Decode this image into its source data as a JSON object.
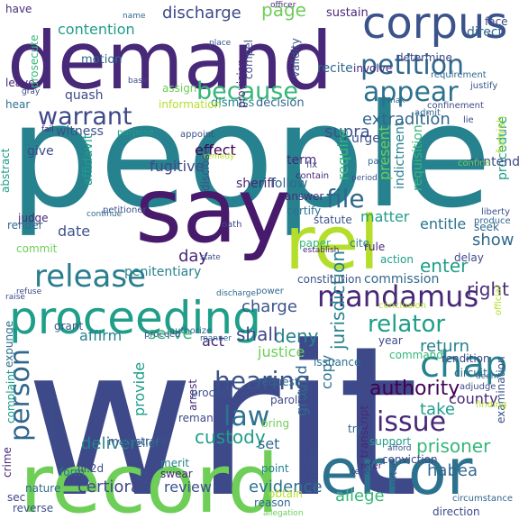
{
  "colors": {
    "background": "#ffffff",
    "palette": [
      "#440154",
      "#482878",
      "#3e4989",
      "#31688e",
      "#26828e",
      "#1f9e89",
      "#35b779",
      "#6ece58",
      "#b5de2b"
    ]
  },
  "words": [
    {
      "text": "people",
      "color": "#26828e"
    },
    {
      "text": "writ",
      "color": "#3e4989"
    },
    {
      "text": "demand",
      "color": "#482878"
    },
    {
      "text": "say",
      "color": "#481a6c"
    },
    {
      "text": "record",
      "color": "#6ece58"
    },
    {
      "text": "error",
      "color": "#2c728e"
    },
    {
      "text": "rel",
      "color": "#b5de2b"
    },
    {
      "text": "corpus",
      "color": "#3b528b"
    },
    {
      "text": "proceeding",
      "color": "#1f9e89"
    },
    {
      "text": "mandamus",
      "color": "#482878"
    },
    {
      "text": "release",
      "color": "#287d8e"
    },
    {
      "text": "petition",
      "color": "#31688e"
    },
    {
      "text": "appear",
      "color": "#2c728e"
    },
    {
      "text": "chap",
      "color": "#26828e"
    },
    {
      "text": "because",
      "color": "#35b779"
    },
    {
      "text": "warrant",
      "color": "#3e4989"
    },
    {
      "text": "person",
      "color": "#31688e"
    },
    {
      "text": "hearing",
      "color": "#3b528b"
    },
    {
      "text": "law",
      "color": "#2c728e"
    },
    {
      "text": "relator",
      "color": "#1f9e89"
    },
    {
      "text": "issue",
      "color": "#482878"
    },
    {
      "text": "authority",
      "color": "#440154"
    },
    {
      "text": "file",
      "color": "#31688e"
    },
    {
      "text": "discharge",
      "color": "#3e4989"
    },
    {
      "text": "contention",
      "color": "#1f9e89"
    },
    {
      "text": "page",
      "color": "#6ece58"
    },
    {
      "text": "extradition",
      "color": "#31688e"
    },
    {
      "text": "supra",
      "color": "#3b528b"
    },
    {
      "text": "deny",
      "color": "#26828e"
    },
    {
      "text": "enter",
      "color": "#1f9e89"
    },
    {
      "text": "right",
      "color": "#472d7b"
    },
    {
      "text": "prisoner",
      "color": "#35b779"
    },
    {
      "text": "custody",
      "color": "#1f9e89"
    },
    {
      "text": "deliver",
      "color": "#26828e"
    },
    {
      "text": "certiorari",
      "color": "#3e4989"
    },
    {
      "text": "evidence",
      "color": "#2c728e"
    },
    {
      "text": "habea",
      "color": "#31688e"
    },
    {
      "text": "allege",
      "color": "#35b779"
    },
    {
      "text": "review",
      "color": "#3b528b"
    },
    {
      "text": "take",
      "color": "#1f9e89"
    },
    {
      "text": "county",
      "color": "#482878"
    },
    {
      "text": "return",
      "color": "#26828e"
    },
    {
      "text": "jurisdiction",
      "color": "#26828e"
    },
    {
      "text": "charge",
      "color": "#3b528b"
    },
    {
      "text": "show",
      "color": "#31688e"
    },
    {
      "text": "matter",
      "color": "#1f9e89"
    },
    {
      "text": "entitle",
      "color": "#2c728e"
    },
    {
      "text": "shall",
      "color": "#3e4989"
    },
    {
      "text": "justice",
      "color": "#6ece58"
    },
    {
      "text": "day",
      "color": "#482878"
    },
    {
      "text": "date",
      "color": "#3b528b"
    },
    {
      "text": "serve",
      "color": "#35b779"
    },
    {
      "text": "affirm",
      "color": "#26828e"
    },
    {
      "text": "act",
      "color": "#482878"
    },
    {
      "text": "provide",
      "color": "#1f9e89"
    },
    {
      "text": "set",
      "color": "#31688e"
    },
    {
      "text": "fugitive",
      "color": "#3e4989"
    },
    {
      "text": "effect",
      "color": "#440154"
    },
    {
      "text": "require",
      "color": "#35b779"
    },
    {
      "text": "present",
      "color": "#6ece58"
    },
    {
      "text": "ground",
      "color": "#31688e"
    },
    {
      "text": "copy",
      "color": "#2c728e"
    },
    {
      "text": "sheriff",
      "color": "#482878"
    },
    {
      "text": "follow",
      "color": "#31688e"
    },
    {
      "text": "urge",
      "color": "#3b528b"
    },
    {
      "text": "indictment",
      "color": "#26828e"
    },
    {
      "text": "requisition",
      "color": "#35b779"
    },
    {
      "text": "procedure",
      "color": "#1f9e89"
    },
    {
      "text": "contend",
      "color": "#3e4989"
    },
    {
      "text": "term",
      "color": "#482878"
    },
    {
      "text": "decision",
      "color": "#31688e"
    },
    {
      "text": "dismiss",
      "color": "#26828e"
    },
    {
      "text": "information",
      "color": "#b5de2b"
    },
    {
      "text": "assign",
      "color": "#6ece58"
    },
    {
      "text": "motion",
      "color": "#31688e"
    },
    {
      "text": "witness",
      "color": "#3b528b"
    },
    {
      "text": "give",
      "color": "#3e4989"
    },
    {
      "text": "affidavit",
      "color": "#1f9e89"
    },
    {
      "text": "quash",
      "color": "#3e4989"
    },
    {
      "text": "hear",
      "color": "#2c728e"
    },
    {
      "text": "leave",
      "color": "#482878"
    },
    {
      "text": "prosecute",
      "color": "#35b779"
    },
    {
      "text": "have",
      "color": "#472d7b"
    },
    {
      "text": "recite",
      "color": "#31688e"
    },
    {
      "text": "involve",
      "color": "#482878"
    },
    {
      "text": "determine",
      "color": "#3e4989"
    },
    {
      "text": "direct",
      "color": "#31688e"
    },
    {
      "text": "sustain",
      "color": "#482878"
    },
    {
      "text": "face",
      "color": "#3e4989"
    },
    {
      "text": "compel",
      "color": "#3e4989"
    },
    {
      "text": "validity",
      "color": "#3b528b"
    },
    {
      "text": "provision",
      "color": "#482878"
    },
    {
      "text": "answer",
      "color": "#472d7b"
    },
    {
      "text": "certify",
      "color": "#2c728e"
    },
    {
      "text": "statute",
      "color": "#3b528b"
    },
    {
      "text": "seek",
      "color": "#31688e"
    },
    {
      "text": "paper",
      "color": "#35b779"
    },
    {
      "text": "cite",
      "color": "#26828e"
    },
    {
      "text": "rule",
      "color": "#482878"
    },
    {
      "text": "action",
      "color": "#1f9e89"
    },
    {
      "text": "delay",
      "color": "#3e4989"
    },
    {
      "text": "commission",
      "color": "#31688e"
    },
    {
      "text": "constitution",
      "color": "#3b528b"
    },
    {
      "text": "penitentiary",
      "color": "#26828e"
    },
    {
      "text": "commit",
      "color": "#6ece58"
    },
    {
      "text": "render",
      "color": "#31688e"
    },
    {
      "text": "judge",
      "color": "#482878"
    },
    {
      "text": "abstract",
      "color": "#1f9e89"
    },
    {
      "text": "petitioner",
      "color": "#3b528b"
    },
    {
      "text": "oath",
      "color": "#3e4989"
    },
    {
      "text": "grant",
      "color": "#3b528b"
    },
    {
      "text": "expunge",
      "color": "#2c728e"
    },
    {
      "text": "complaint",
      "color": "#1f9e89"
    },
    {
      "text": "crime",
      "color": "#482878"
    },
    {
      "text": "sec",
      "color": "#3e4989"
    },
    {
      "text": "nature",
      "color": "#31688e"
    },
    {
      "text": "reverse",
      "color": "#3b528b"
    },
    {
      "text": "form",
      "color": "#2c728e"
    },
    {
      "text": "ill.2d",
      "color": "#3e4989"
    },
    {
      "text": "swear",
      "color": "#482878"
    },
    {
      "text": "merit",
      "color": "#26828e"
    },
    {
      "text": "magistrate",
      "color": "#3b528b"
    },
    {
      "text": "relief",
      "color": "#31688e"
    },
    {
      "text": "bring",
      "color": "#6ece58"
    },
    {
      "text": "arrest",
      "color": "#482878"
    },
    {
      "text": "remand",
      "color": "#3e4989"
    },
    {
      "text": "process",
      "color": "#3b528b"
    },
    {
      "text": "request",
      "color": "#31688e"
    },
    {
      "text": "issuance",
      "color": "#2c728e"
    },
    {
      "text": "parole",
      "color": "#3e4989"
    },
    {
      "text": "point",
      "color": "#26828e"
    },
    {
      "text": "obtain",
      "color": "#b5de2b"
    },
    {
      "text": "reason",
      "color": "#31688e"
    },
    {
      "text": "consider",
      "color": "#3b528b"
    },
    {
      "text": "transcript",
      "color": "#482878"
    },
    {
      "text": "year",
      "color": "#3e4989"
    },
    {
      "text": "command",
      "color": "#35b779"
    },
    {
      "text": "rendition",
      "color": "#3e4989"
    },
    {
      "text": "circuit",
      "color": "#31688e"
    },
    {
      "text": "support",
      "color": "#1f9e89"
    },
    {
      "text": "conviction",
      "color": "#3e4989"
    },
    {
      "text": "try",
      "color": "#31688e"
    },
    {
      "text": "examination",
      "color": "#3b528b"
    },
    {
      "text": "adjudge",
      "color": "#3e4989"
    },
    {
      "text": "finding",
      "color": "#b5de2b"
    },
    {
      "text": "circumstance",
      "color": "#31688e"
    },
    {
      "text": "direction",
      "color": "#3e4989"
    },
    {
      "text": "virtue",
      "color": "#3b528b"
    },
    {
      "text": "refer",
      "color": "#482878"
    },
    {
      "text": "officer",
      "color": "#482878"
    },
    {
      "text": "name",
      "color": "#31688e"
    },
    {
      "text": "place",
      "color": "#3b528b"
    },
    {
      "text": "base",
      "color": "#3e4989"
    },
    {
      "text": "requirement",
      "color": "#31688e"
    },
    {
      "text": "justify",
      "color": "#3b528b"
    },
    {
      "text": "confinement",
      "color": "#3e4989"
    },
    {
      "text": "admit",
      "color": "#31688e"
    },
    {
      "text": "purpose",
      "color": "#1f9e89"
    },
    {
      "text": "appoint",
      "color": "#3b528b"
    },
    {
      "text": "remedy",
      "color": "#b5de2b"
    },
    {
      "text": "contain",
      "color": "#482878"
    },
    {
      "text": "fix",
      "color": "#3e4989"
    },
    {
      "text": "par",
      "color": "#31688e"
    },
    {
      "text": "period",
      "color": "#3b528b"
    },
    {
      "text": "confine",
      "color": "#6ece58"
    },
    {
      "text": "furnish",
      "color": "#b5de2b"
    },
    {
      "text": "liberty",
      "color": "#3b528b"
    },
    {
      "text": "produce",
      "color": "#31688e"
    },
    {
      "text": "establish",
      "color": "#482878"
    },
    {
      "text": "refuse",
      "color": "#3e4989"
    },
    {
      "text": "continue",
      "color": "#31688e"
    },
    {
      "text": "disclose",
      "color": "#3b528b"
    },
    {
      "text": "power",
      "color": "#31688e"
    },
    {
      "text": "conclusion",
      "color": "#b5de2b"
    },
    {
      "text": "authorize",
      "color": "#31688e"
    },
    {
      "text": "proceed",
      "color": "#3b528b"
    },
    {
      "text": "raise",
      "color": "#3e4989"
    },
    {
      "text": "official",
      "color": "#b5de2b"
    },
    {
      "text": "manner",
      "color": "#31688e"
    },
    {
      "text": "teller",
      "color": "#3e4989"
    },
    {
      "text": "deem",
      "color": "#31688e"
    },
    {
      "text": "afford",
      "color": "#3b528b"
    },
    {
      "text": "allegation",
      "color": "#6ece58"
    },
    {
      "text": "lie",
      "color": "#3e4989"
    },
    {
      "text": "mak",
      "color": "#31688e"
    },
    {
      "text": "state",
      "color": "#3b528b"
    },
    {
      "text": "fail",
      "color": "#482878"
    },
    {
      "text": "gray",
      "color": "#3e4989"
    },
    {
      "text": "discharge",
      "color": "#31688e"
    },
    {
      "text": "application",
      "color": "#3b528b"
    }
  ]
}
